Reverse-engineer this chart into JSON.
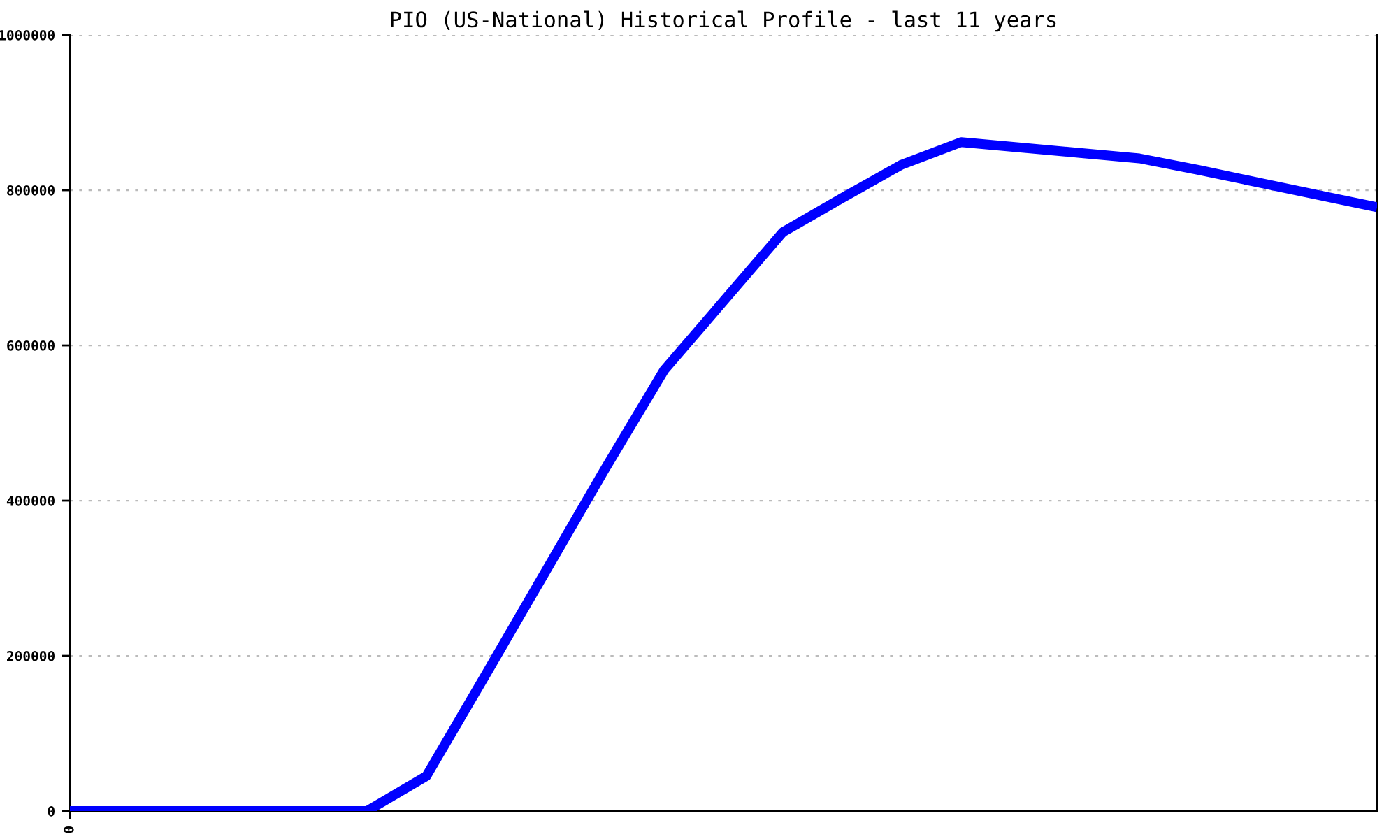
{
  "chart_data": {
    "type": "line",
    "title": "PIO (US-National) Historical Profile - last 11 years",
    "categories": [
      "0",
      null,
      null,
      null,
      null,
      null,
      null,
      null,
      null,
      null,
      null,
      null,
      null,
      null,
      null,
      null,
      null,
      null,
      null,
      null,
      null,
      null,
      null
    ],
    "series": [
      {
        "color": "#0000ff",
        "values": [
          0,
          0,
          0,
          0,
          0,
          0,
          45000,
          176000,
          308000,
          440000,
          568000,
          657000,
          746000,
          790000,
          833000,
          862000,
          855000,
          848000,
          841000,
          826000,
          810000,
          794000,
          778000
        ]
      }
    ],
    "ylim": [
      0,
      1000000
    ],
    "yticks": [
      0,
      200000,
      400000,
      600000,
      800000,
      1000000
    ],
    "grid": "y",
    "legend": false,
    "marker": "none",
    "line_style": "solid"
  }
}
